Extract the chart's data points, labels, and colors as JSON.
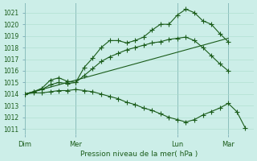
{
  "title": "Pression niveau de la mer( hPa )",
  "bg_color": "#cceee8",
  "grid_color": "#aaddcc",
  "line_color": "#1a5c1a",
  "vline_color": "#6699aa",
  "ylim": [
    1010.5,
    1021.8
  ],
  "yticks": [
    1011,
    1012,
    1013,
    1014,
    1015,
    1016,
    1017,
    1018,
    1019,
    1020,
    1021
  ],
  "day_labels": [
    "Dim",
    "Mer",
    "Lun",
    "Mar"
  ],
  "day_positions": [
    0,
    6,
    18,
    24
  ],
  "xlim": [
    0,
    27
  ],
  "series": [
    {
      "x": [
        0,
        1,
        2,
        3,
        4,
        5,
        6,
        7,
        8,
        9,
        10,
        11,
        12,
        13,
        14,
        15,
        16,
        17,
        18,
        19,
        20,
        21,
        22,
        23,
        24
      ],
      "y": [
        1014.0,
        1014.2,
        1014.5,
        1015.2,
        1015.4,
        1015.1,
        1015.0,
        1016.3,
        1017.1,
        1018.0,
        1018.6,
        1018.6,
        1018.4,
        1018.6,
        1018.9,
        1019.5,
        1020.0,
        1020.0,
        1020.8,
        1021.3,
        1021.0,
        1020.3,
        1020.0,
        1019.2,
        1018.5
      ],
      "marker": true
    },
    {
      "x": [
        0,
        1,
        2,
        3,
        4,
        5,
        6,
        7,
        8,
        9,
        10,
        11,
        12,
        13,
        14,
        15,
        16,
        17,
        18,
        19,
        20,
        21,
        22,
        23,
        24
      ],
      "y": [
        1014.0,
        1014.2,
        1014.4,
        1014.8,
        1015.0,
        1014.9,
        1015.0,
        1015.6,
        1016.2,
        1016.8,
        1017.2,
        1017.5,
        1017.8,
        1018.0,
        1018.2,
        1018.4,
        1018.5,
        1018.7,
        1018.8,
        1018.9,
        1018.6,
        1018.0,
        1017.3,
        1016.6,
        1016.0
      ],
      "marker": true
    },
    {
      "x": [
        0,
        24
      ],
      "y": [
        1014.0,
        1018.8
      ],
      "marker": false
    },
    {
      "x": [
        0,
        1,
        2,
        3,
        4,
        5,
        6,
        7,
        8,
        9,
        10,
        11,
        12,
        13,
        14,
        15,
        16,
        17,
        18,
        19,
        20,
        21,
        22,
        23,
        24,
        25,
        26
      ],
      "y": [
        1014.0,
        1014.1,
        1014.1,
        1014.2,
        1014.3,
        1014.3,
        1014.4,
        1014.3,
        1014.2,
        1014.0,
        1013.8,
        1013.6,
        1013.3,
        1013.1,
        1012.8,
        1012.6,
        1012.3,
        1012.0,
        1011.8,
        1011.6,
        1011.8,
        1012.2,
        1012.5,
        1012.8,
        1013.2,
        1012.5,
        1011.1
      ],
      "marker": true
    }
  ]
}
